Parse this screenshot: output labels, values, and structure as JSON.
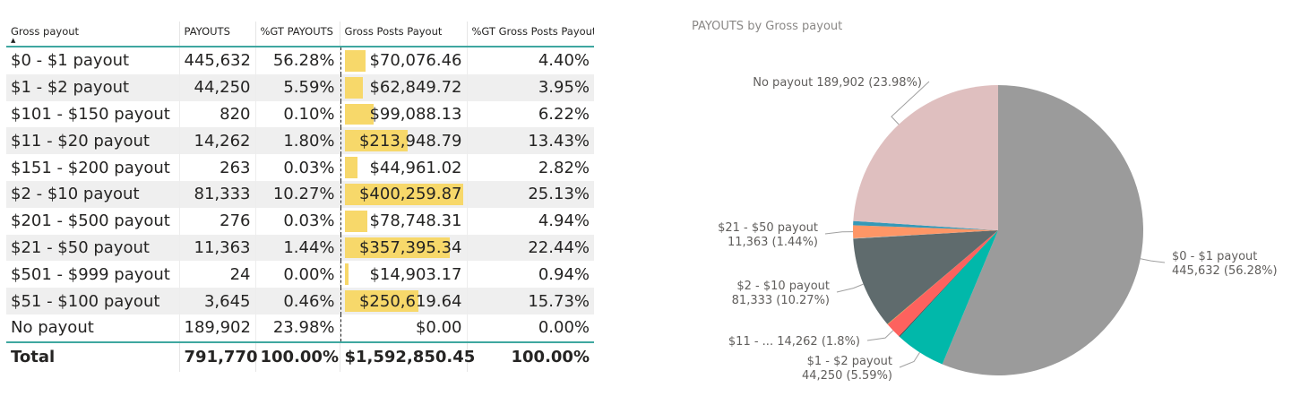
{
  "table": {
    "headers": [
      "Gross payout",
      "PAYOUTS",
      "%GT PAYOUTS",
      "Gross Posts Payout",
      "%GT Gross Posts Payout"
    ],
    "sort_indicator": "▲",
    "rows": [
      {
        "label": "$0 - $1 payout",
        "payouts": "445,632",
        "pct_payouts": "56.28%",
        "gross": "$70,076.46",
        "gross_value": 70076.46,
        "pct_gross": "4.40%"
      },
      {
        "label": "$1 - $2 payout",
        "payouts": "44,250",
        "pct_payouts": "5.59%",
        "gross": "$62,849.72",
        "gross_value": 62849.72,
        "pct_gross": "3.95%"
      },
      {
        "label": "$101 - $150 payout",
        "payouts": "820",
        "pct_payouts": "0.10%",
        "gross": "$99,088.13",
        "gross_value": 99088.13,
        "pct_gross": "6.22%"
      },
      {
        "label": "$11 - $20 payout",
        "payouts": "14,262",
        "pct_payouts": "1.80%",
        "gross": "$213,948.79",
        "gross_value": 213948.79,
        "pct_gross": "13.43%"
      },
      {
        "label": "$151  - $200 payout",
        "payouts": "263",
        "pct_payouts": "0.03%",
        "gross": "$44,961.02",
        "gross_value": 44961.02,
        "pct_gross": "2.82%"
      },
      {
        "label": "$2 - $10 payout",
        "payouts": "81,333",
        "pct_payouts": "10.27%",
        "gross": "$400,259.87",
        "gross_value": 400259.87,
        "pct_gross": "25.13%"
      },
      {
        "label": "$201  - $500 payout",
        "payouts": "276",
        "pct_payouts": "0.03%",
        "gross": "$78,748.31",
        "gross_value": 78748.31,
        "pct_gross": "4.94%"
      },
      {
        "label": "$21 - $50 payout",
        "payouts": "11,363",
        "pct_payouts": "1.44%",
        "gross": "$357,395.34",
        "gross_value": 357395.34,
        "pct_gross": "22.44%"
      },
      {
        "label": "$501  - $999 payout",
        "payouts": "24",
        "pct_payouts": "0.00%",
        "gross": "$14,903.17",
        "gross_value": 14903.17,
        "pct_gross": "0.94%"
      },
      {
        "label": "$51 - $100 payout",
        "payouts": "3,645",
        "pct_payouts": "0.46%",
        "gross": "$250,619.64",
        "gross_value": 250619.64,
        "pct_gross": "15.73%"
      },
      {
        "label": "No payout",
        "payouts": "189,902",
        "pct_payouts": "23.98%",
        "gross": "$0.00",
        "gross_value": 0,
        "pct_gross": "0.00%"
      }
    ],
    "total": {
      "label": "Total",
      "payouts": "791,770",
      "pct_payouts": "100.00%",
      "gross": "$1,592,850.45",
      "pct_gross": "100.00%"
    },
    "bar_color": "#f7d86a",
    "accent_color": "#3fa7a0"
  },
  "pie": {
    "title": "PAYOUTS by Gross payout",
    "chart_data": {
      "type": "pie",
      "title": "PAYOUTS by Gross payout",
      "slices": [
        {
          "name": "$0 - $1 payout",
          "value": 445632,
          "color": "#9b9b9b",
          "label_lines": [
            "$0 - $1 payout",
            "445,632 (56.28%)"
          ]
        },
        {
          "name": "$1 - $2 payout",
          "value": 44250,
          "color": "#01b8aa",
          "label_lines": [
            "$1 - $2 payout",
            "44,250 (5.59%)"
          ]
        },
        {
          "name": "$101 - $150 payout",
          "value": 820,
          "color": "#374649",
          "label_lines": []
        },
        {
          "name": "$11 - $20 payout",
          "value": 14262,
          "color": "#fd625e",
          "label_lines": [
            "$11 - ... 14,262 (1.8%)"
          ]
        },
        {
          "name": "$151  - $200 payout",
          "value": 263,
          "color": "#f2c80f",
          "label_lines": []
        },
        {
          "name": "$2 - $10 payout",
          "value": 81333,
          "color": "#5f6b6d",
          "label_lines": [
            "$2 - $10 payout",
            "81,333 (10.27%)"
          ]
        },
        {
          "name": "$201  - $500 payout",
          "value": 276,
          "color": "#8ad4eb",
          "label_lines": []
        },
        {
          "name": "$21 - $50 payout",
          "value": 11363,
          "color": "#fe9666",
          "label_lines": [
            "$21 - $50 payout",
            "11,363 (1.44%)"
          ]
        },
        {
          "name": "$501  - $999 payout",
          "value": 24,
          "color": "#a66999",
          "label_lines": []
        },
        {
          "name": "$51 - $100 payout",
          "value": 3645,
          "color": "#3599b8",
          "label_lines": []
        },
        {
          "name": "No payout",
          "value": 189902,
          "color": "#dfbfbf",
          "label_lines": [
            "No payout 189,902 (23.98%)"
          ]
        }
      ],
      "start_angle_deg": 0,
      "direction": "clockwise"
    }
  }
}
